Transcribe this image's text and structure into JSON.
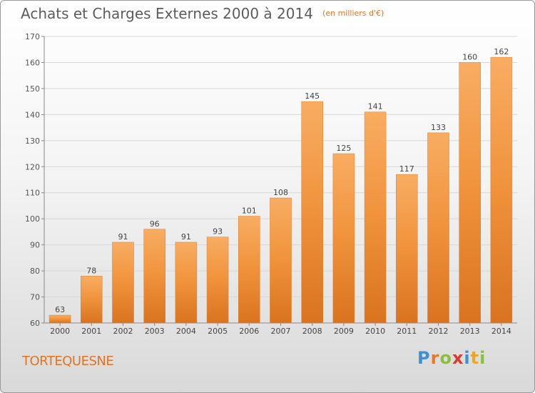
{
  "header": {
    "title": "Achats et Charges Externes 2000 à 2014",
    "subtitle": "(en milliers d'€)"
  },
  "footer": {
    "commune": "TORTEQUESNE",
    "brand": "Proxiti",
    "brand_letters": [
      {
        "ch": "P",
        "color": "#3f8fd1"
      },
      {
        "ch": "r",
        "color": "#e8792b"
      },
      {
        "ch": "o",
        "color": "#8cbf3f"
      },
      {
        "ch": "x",
        "color": "#d93c2f"
      },
      {
        "ch": "i",
        "color": "#3f8fd1"
      },
      {
        "ch": "t",
        "color": "#e8a62b"
      },
      {
        "ch": "i",
        "color": "#8cbf3f"
      }
    ]
  },
  "chart_data": {
    "type": "bar",
    "title": "Achats et Charges Externes 2000 à 2014",
    "subtitle": "(en milliers d'€)",
    "categories": [
      "2000",
      "2001",
      "2002",
      "2003",
      "2004",
      "2005",
      "2006",
      "2007",
      "2008",
      "2009",
      "2010",
      "2011",
      "2012",
      "2013",
      "2014"
    ],
    "values": [
      63,
      78,
      91,
      96,
      91,
      93,
      101,
      108,
      145,
      125,
      141,
      117,
      133,
      160,
      162
    ],
    "ylim": [
      60,
      170
    ],
    "yticks": [
      60,
      70,
      80,
      90,
      100,
      110,
      120,
      130,
      140,
      150,
      160,
      170
    ],
    "grid": true,
    "bar_color": "#f0923b",
    "bar_color_light": "#f8ad62",
    "bar_color_dark": "#d9731f"
  }
}
